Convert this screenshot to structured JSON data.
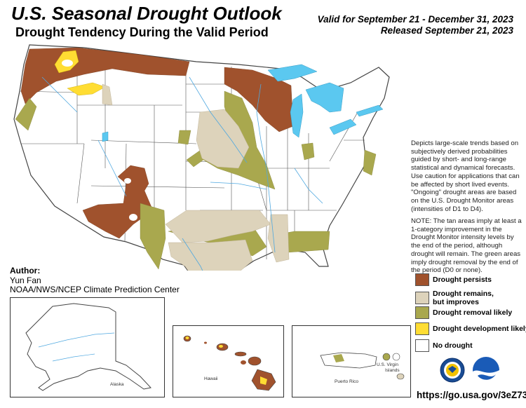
{
  "header": {
    "title": "U.S. Seasonal Drought Outlook",
    "subtitle": "Drought Tendency During the Valid Period",
    "valid": "Valid for September 21 - December 31, 2023",
    "released": "Released September 21, 2023"
  },
  "notes": {
    "description": "Depicts large-scale trends based on subjectively derived probabilities guided by short- and long-range statistical and dynamical forecasts. Use caution for applications that can be affected by short lived events. \"Ongoing\" drought areas are based on the U.S. Drought Monitor areas (intensities of D1 to D4).",
    "note": "NOTE: The tan areas imply at least a 1-category improvement in the Drought Monitor intensity levels by the end of the period, although drought will remain. The green areas imply drought removal by the end of the period (D0 or none)."
  },
  "legend": [
    {
      "label": "Drought persists",
      "sub": "",
      "color": "#a0522d"
    },
    {
      "label": "Drought remains,",
      "sub": "but improves",
      "color": "#ddd3bb"
    },
    {
      "label": "Drought removal likely",
      "sub": "",
      "color": "#a9a84e"
    },
    {
      "label": "Drought development likely",
      "sub": "",
      "color": "#ffdd33"
    },
    {
      "label": "No drought",
      "sub": "",
      "color": "#ffffff"
    }
  ],
  "author": {
    "heading": "Author:",
    "name": "Yun Fan",
    "org": "NOAA/NWS/NCEP Climate Prediction Center"
  },
  "insets": {
    "alaska": "Alaska",
    "hawaii": "Hawaii",
    "puerto_rico": "Puerto Rico",
    "virgin_islands_line1": "U.S. Virgin",
    "virgin_islands_line2": "Islands"
  },
  "logos": {
    "doc_seal": "DOC",
    "noaa": "NOAA"
  },
  "footer": {
    "url": "https://go.usa.gov/3eZ73"
  },
  "colors": {
    "water": "#5bc8f0",
    "border": "#444444",
    "persists": "#a0522d",
    "improves": "#ddd3bb",
    "removal": "#a9a84e",
    "development": "#ffdd33"
  }
}
